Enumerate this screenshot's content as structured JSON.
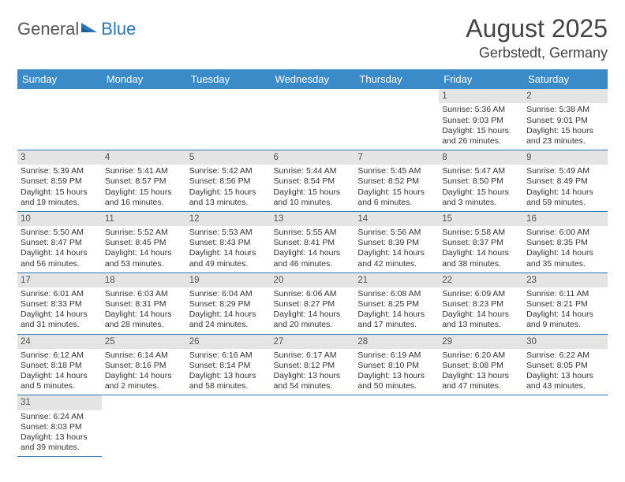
{
  "logo": {
    "part1": "General",
    "part2": "Blue"
  },
  "title": "August 2025",
  "location": "Gerbstedt, Germany",
  "colors": {
    "header_bg": "#3b8bc9",
    "accent": "#2e75b6",
    "daynum_bg": "#e4e4e4"
  },
  "weekdays": [
    "Sunday",
    "Monday",
    "Tuesday",
    "Wednesday",
    "Thursday",
    "Friday",
    "Saturday"
  ],
  "weeks": [
    [
      null,
      null,
      null,
      null,
      null,
      {
        "n": "1",
        "sr": "Sunrise: 5:36 AM",
        "ss": "Sunset: 9:03 PM",
        "d1": "Daylight: 15 hours",
        "d2": "and 26 minutes."
      },
      {
        "n": "2",
        "sr": "Sunrise: 5:38 AM",
        "ss": "Sunset: 9:01 PM",
        "d1": "Daylight: 15 hours",
        "d2": "and 23 minutes."
      }
    ],
    [
      {
        "n": "3",
        "sr": "Sunrise: 5:39 AM",
        "ss": "Sunset: 8:59 PM",
        "d1": "Daylight: 15 hours",
        "d2": "and 19 minutes."
      },
      {
        "n": "4",
        "sr": "Sunrise: 5:41 AM",
        "ss": "Sunset: 8:57 PM",
        "d1": "Daylight: 15 hours",
        "d2": "and 16 minutes."
      },
      {
        "n": "5",
        "sr": "Sunrise: 5:42 AM",
        "ss": "Sunset: 8:56 PM",
        "d1": "Daylight: 15 hours",
        "d2": "and 13 minutes."
      },
      {
        "n": "6",
        "sr": "Sunrise: 5:44 AM",
        "ss": "Sunset: 8:54 PM",
        "d1": "Daylight: 15 hours",
        "d2": "and 10 minutes."
      },
      {
        "n": "7",
        "sr": "Sunrise: 5:45 AM",
        "ss": "Sunset: 8:52 PM",
        "d1": "Daylight: 15 hours",
        "d2": "and 6 minutes."
      },
      {
        "n": "8",
        "sr": "Sunrise: 5:47 AM",
        "ss": "Sunset: 8:50 PM",
        "d1": "Daylight: 15 hours",
        "d2": "and 3 minutes."
      },
      {
        "n": "9",
        "sr": "Sunrise: 5:49 AM",
        "ss": "Sunset: 8:49 PM",
        "d1": "Daylight: 14 hours",
        "d2": "and 59 minutes."
      }
    ],
    [
      {
        "n": "10",
        "sr": "Sunrise: 5:50 AM",
        "ss": "Sunset: 8:47 PM",
        "d1": "Daylight: 14 hours",
        "d2": "and 56 minutes."
      },
      {
        "n": "11",
        "sr": "Sunrise: 5:52 AM",
        "ss": "Sunset: 8:45 PM",
        "d1": "Daylight: 14 hours",
        "d2": "and 53 minutes."
      },
      {
        "n": "12",
        "sr": "Sunrise: 5:53 AM",
        "ss": "Sunset: 8:43 PM",
        "d1": "Daylight: 14 hours",
        "d2": "and 49 minutes."
      },
      {
        "n": "13",
        "sr": "Sunrise: 5:55 AM",
        "ss": "Sunset: 8:41 PM",
        "d1": "Daylight: 14 hours",
        "d2": "and 46 minutes."
      },
      {
        "n": "14",
        "sr": "Sunrise: 5:56 AM",
        "ss": "Sunset: 8:39 PM",
        "d1": "Daylight: 14 hours",
        "d2": "and 42 minutes."
      },
      {
        "n": "15",
        "sr": "Sunrise: 5:58 AM",
        "ss": "Sunset: 8:37 PM",
        "d1": "Daylight: 14 hours",
        "d2": "and 38 minutes."
      },
      {
        "n": "16",
        "sr": "Sunrise: 6:00 AM",
        "ss": "Sunset: 8:35 PM",
        "d1": "Daylight: 14 hours",
        "d2": "and 35 minutes."
      }
    ],
    [
      {
        "n": "17",
        "sr": "Sunrise: 6:01 AM",
        "ss": "Sunset: 8:33 PM",
        "d1": "Daylight: 14 hours",
        "d2": "and 31 minutes."
      },
      {
        "n": "18",
        "sr": "Sunrise: 6:03 AM",
        "ss": "Sunset: 8:31 PM",
        "d1": "Daylight: 14 hours",
        "d2": "and 28 minutes."
      },
      {
        "n": "19",
        "sr": "Sunrise: 6:04 AM",
        "ss": "Sunset: 8:29 PM",
        "d1": "Daylight: 14 hours",
        "d2": "and 24 minutes."
      },
      {
        "n": "20",
        "sr": "Sunrise: 6:06 AM",
        "ss": "Sunset: 8:27 PM",
        "d1": "Daylight: 14 hours",
        "d2": "and 20 minutes."
      },
      {
        "n": "21",
        "sr": "Sunrise: 6:08 AM",
        "ss": "Sunset: 8:25 PM",
        "d1": "Daylight: 14 hours",
        "d2": "and 17 minutes."
      },
      {
        "n": "22",
        "sr": "Sunrise: 6:09 AM",
        "ss": "Sunset: 8:23 PM",
        "d1": "Daylight: 14 hours",
        "d2": "and 13 minutes."
      },
      {
        "n": "23",
        "sr": "Sunrise: 6:11 AM",
        "ss": "Sunset: 8:21 PM",
        "d1": "Daylight: 14 hours",
        "d2": "and 9 minutes."
      }
    ],
    [
      {
        "n": "24",
        "sr": "Sunrise: 6:12 AM",
        "ss": "Sunset: 8:18 PM",
        "d1": "Daylight: 14 hours",
        "d2": "and 5 minutes."
      },
      {
        "n": "25",
        "sr": "Sunrise: 6:14 AM",
        "ss": "Sunset: 8:16 PM",
        "d1": "Daylight: 14 hours",
        "d2": "and 2 minutes."
      },
      {
        "n": "26",
        "sr": "Sunrise: 6:16 AM",
        "ss": "Sunset: 8:14 PM",
        "d1": "Daylight: 13 hours",
        "d2": "and 58 minutes."
      },
      {
        "n": "27",
        "sr": "Sunrise: 6:17 AM",
        "ss": "Sunset: 8:12 PM",
        "d1": "Daylight: 13 hours",
        "d2": "and 54 minutes."
      },
      {
        "n": "28",
        "sr": "Sunrise: 6:19 AM",
        "ss": "Sunset: 8:10 PM",
        "d1": "Daylight: 13 hours",
        "d2": "and 50 minutes."
      },
      {
        "n": "29",
        "sr": "Sunrise: 6:20 AM",
        "ss": "Sunset: 8:08 PM",
        "d1": "Daylight: 13 hours",
        "d2": "and 47 minutes."
      },
      {
        "n": "30",
        "sr": "Sunrise: 6:22 AM",
        "ss": "Sunset: 8:05 PM",
        "d1": "Daylight: 13 hours",
        "d2": "and 43 minutes."
      }
    ],
    [
      {
        "n": "31",
        "sr": "Sunrise: 6:24 AM",
        "ss": "Sunset: 8:03 PM",
        "d1": "Daylight: 13 hours",
        "d2": "and 39 minutes."
      },
      null,
      null,
      null,
      null,
      null,
      null
    ]
  ]
}
